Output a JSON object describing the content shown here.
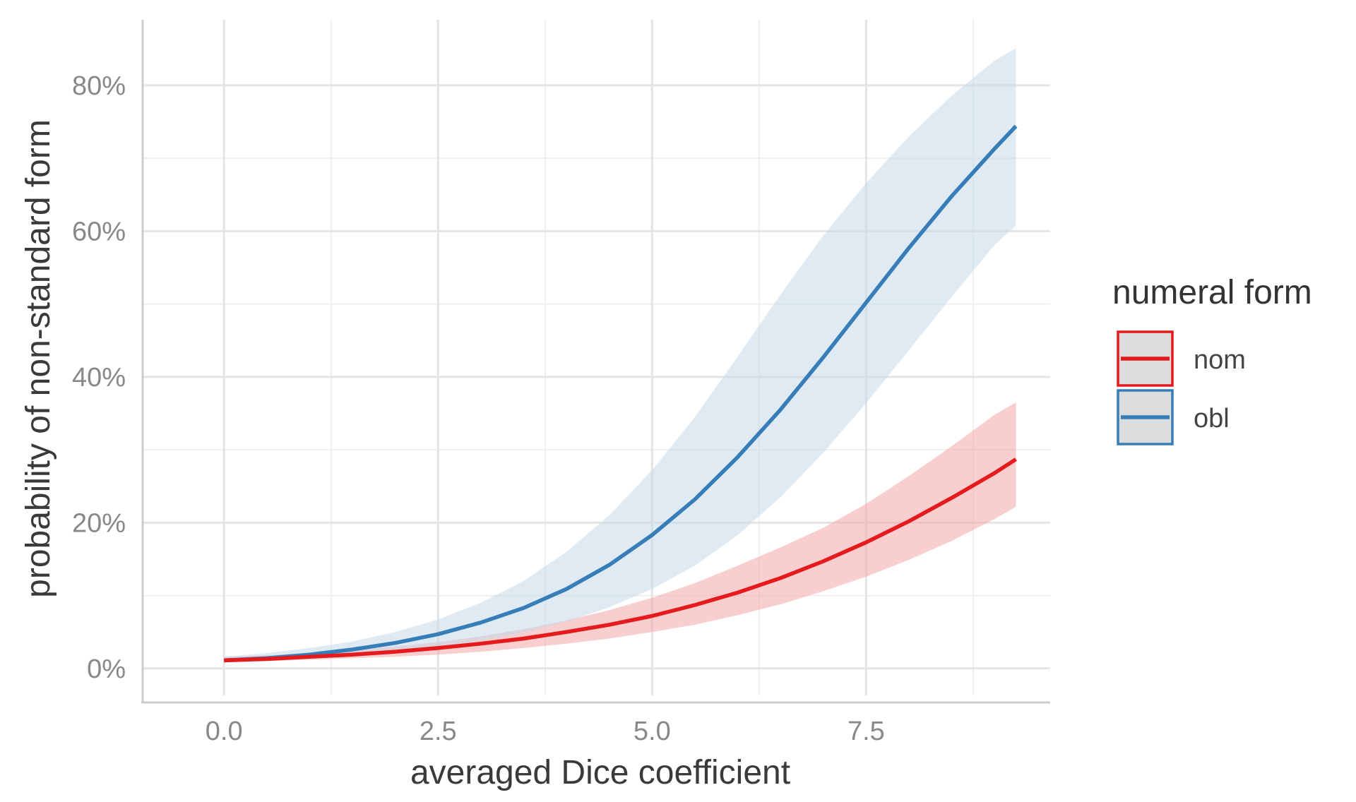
{
  "chart_data": {
    "type": "line",
    "title": "",
    "xlabel": "averaged Dice coefficient",
    "ylabel": "probability of non-standard form",
    "xlim": [
      -0.95,
      9.65
    ],
    "ylim": [
      -0.037,
      0.89
    ],
    "x_ticks": [
      {
        "value": 0.0,
        "label": "0.0"
      },
      {
        "value": 2.5,
        "label": "2.5"
      },
      {
        "value": 5.0,
        "label": "5.0"
      },
      {
        "value": 7.5,
        "label": "7.5"
      }
    ],
    "y_ticks": [
      {
        "value": 0.0,
        "label": "0%"
      },
      {
        "value": 0.2,
        "label": "20%"
      },
      {
        "value": 0.4,
        "label": "40%"
      },
      {
        "value": 0.6,
        "label": "60%"
      },
      {
        "value": 0.8,
        "label": "80%"
      }
    ],
    "grid": true,
    "legend": {
      "title": "numeral form",
      "position": "right"
    },
    "x": [
      0,
      0.5,
      1.0,
      1.5,
      2.0,
      2.5,
      3.0,
      3.5,
      4.0,
      4.5,
      5.0,
      5.5,
      6.0,
      6.5,
      7.0,
      7.5,
      8.0,
      8.5,
      9.0,
      9.25
    ],
    "series": [
      {
        "name": "nom",
        "color": "#e41a1c",
        "ribbon_color": "#f4a6a8",
        "values": [
          0.011,
          0.013,
          0.016,
          0.019,
          0.023,
          0.028,
          0.034,
          0.041,
          0.05,
          0.06,
          0.072,
          0.087,
          0.104,
          0.124,
          0.147,
          0.173,
          0.202,
          0.234,
          0.268,
          0.287
        ],
        "lower": [
          0.008,
          0.01,
          0.012,
          0.014,
          0.016,
          0.019,
          0.023,
          0.028,
          0.034,
          0.041,
          0.05,
          0.06,
          0.073,
          0.088,
          0.106,
          0.126,
          0.149,
          0.175,
          0.205,
          0.222
        ],
        "upper": [
          0.016,
          0.018,
          0.021,
          0.025,
          0.03,
          0.036,
          0.044,
          0.054,
          0.066,
          0.08,
          0.097,
          0.117,
          0.141,
          0.166,
          0.193,
          0.226,
          0.264,
          0.305,
          0.348,
          0.365
        ]
      },
      {
        "name": "obl",
        "color": "#377eb8",
        "ribbon_color": "#c5d8ea",
        "values": [
          0.011,
          0.014,
          0.019,
          0.026,
          0.035,
          0.047,
          0.063,
          0.083,
          0.109,
          0.142,
          0.183,
          0.232,
          0.29,
          0.355,
          0.427,
          0.502,
          0.577,
          0.648,
          0.713,
          0.744
        ],
        "lower": [
          0.008,
          0.01,
          0.013,
          0.017,
          0.022,
          0.029,
          0.038,
          0.049,
          0.064,
          0.084,
          0.109,
          0.141,
          0.183,
          0.235,
          0.296,
          0.364,
          0.437,
          0.51,
          0.581,
          0.608
        ],
        "upper": [
          0.016,
          0.021,
          0.028,
          0.037,
          0.05,
          0.067,
          0.09,
          0.12,
          0.16,
          0.21,
          0.272,
          0.345,
          0.428,
          0.513,
          0.594,
          0.666,
          0.73,
          0.786,
          0.834,
          0.851
        ]
      }
    ]
  }
}
